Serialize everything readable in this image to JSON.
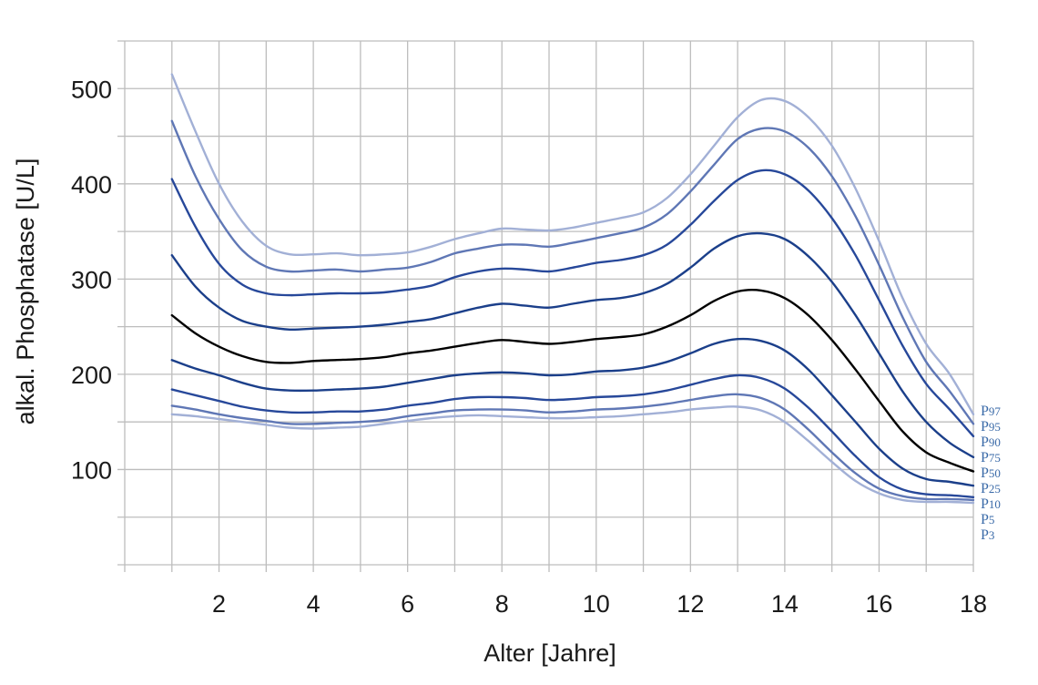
{
  "chart_data": {
    "type": "line",
    "title": "",
    "xlabel": "Alter [Jahre]",
    "ylabel": "alkal. Phosphatase [U/L]",
    "xlim": [
      0,
      18
    ],
    "ylim": [
      0,
      550
    ],
    "x_ticks": [
      2,
      4,
      6,
      8,
      10,
      12,
      14,
      16,
      18
    ],
    "y_ticks": [
      100,
      200,
      300,
      400,
      500
    ],
    "x_grid_step": 1,
    "y_grid_step": 50,
    "grid": true,
    "legend": "labels at right end of lines",
    "x": [
      1,
      1.5,
      2,
      2.5,
      3,
      3.5,
      4,
      4.5,
      5,
      5.5,
      6,
      6.5,
      7,
      7.5,
      8,
      8.5,
      9,
      9.5,
      10,
      10.5,
      11,
      11.5,
      12,
      12.5,
      13,
      13.5,
      14,
      14.5,
      15,
      15.5,
      16,
      16.5,
      17,
      17.5,
      18
    ],
    "series": [
      {
        "name": "P97",
        "color": "#a2b0d6",
        "values": [
          515,
          455,
          400,
          360,
          335,
          326,
          326,
          327,
          325,
          326,
          328,
          334,
          342,
          348,
          353,
          352,
          351,
          354,
          359,
          364,
          370,
          385,
          410,
          440,
          470,
          488,
          487,
          470,
          440,
          395,
          340,
          280,
          232,
          200,
          158
        ]
      },
      {
        "name": "P95",
        "color": "#5f77b5",
        "values": [
          466,
          408,
          363,
          330,
          313,
          308,
          309,
          310,
          308,
          310,
          312,
          318,
          327,
          332,
          336,
          336,
          334,
          338,
          343,
          348,
          354,
          368,
          392,
          420,
          447,
          458,
          455,
          438,
          408,
          366,
          315,
          260,
          213,
          182,
          148
        ]
      },
      {
        "name": "P90",
        "color": "#27489a",
        "values": [
          405,
          355,
          316,
          294,
          285,
          283,
          284,
          285,
          285,
          286,
          289,
          293,
          302,
          308,
          311,
          310,
          308,
          312,
          317,
          320,
          325,
          336,
          357,
          382,
          404,
          414,
          410,
          393,
          364,
          325,
          278,
          230,
          190,
          163,
          135
        ]
      },
      {
        "name": "P75",
        "color": "#1b3f8a",
        "values": [
          325,
          292,
          270,
          256,
          250,
          247,
          248,
          249,
          250,
          252,
          255,
          258,
          264,
          270,
          274,
          272,
          270,
          274,
          278,
          280,
          285,
          295,
          312,
          332,
          345,
          348,
          342,
          324,
          297,
          262,
          222,
          182,
          150,
          128,
          113
        ]
      },
      {
        "name": "P50",
        "color": "#000000",
        "values": [
          262,
          243,
          229,
          219,
          213,
          212,
          214,
          215,
          216,
          218,
          222,
          225,
          229,
          233,
          236,
          234,
          232,
          234,
          237,
          239,
          242,
          250,
          262,
          277,
          287,
          288,
          280,
          262,
          236,
          205,
          172,
          140,
          118,
          107,
          98
        ]
      },
      {
        "name": "P25",
        "color": "#1b3f8a",
        "values": [
          215,
          206,
          199,
          191,
          185,
          183,
          183,
          184,
          185,
          187,
          191,
          195,
          199,
          201,
          202,
          201,
          199,
          200,
          203,
          204,
          207,
          213,
          222,
          232,
          237,
          235,
          225,
          205,
          178,
          150,
          122,
          101,
          90,
          87,
          83
        ]
      },
      {
        "name": "P10",
        "color": "#27489a",
        "values": [
          184,
          178,
          172,
          166,
          162,
          160,
          160,
          161,
          161,
          163,
          167,
          170,
          174,
          176,
          176,
          175,
          173,
          174,
          176,
          177,
          179,
          183,
          189,
          195,
          199,
          196,
          185,
          165,
          140,
          114,
          92,
          79,
          74,
          73,
          71
        ]
      },
      {
        "name": "P5",
        "color": "#5f77b5",
        "values": [
          167,
          163,
          158,
          154,
          151,
          148,
          148,
          149,
          150,
          152,
          156,
          159,
          162,
          163,
          163,
          162,
          160,
          161,
          163,
          164,
          166,
          169,
          173,
          177,
          179,
          175,
          163,
          142,
          118,
          96,
          80,
          72,
          69,
          69,
          68
        ]
      },
      {
        "name": "P3",
        "color": "#a2b0d6",
        "values": [
          158,
          156,
          153,
          150,
          147,
          144,
          143,
          144,
          145,
          148,
          151,
          154,
          156,
          157,
          156,
          155,
          154,
          154,
          155,
          156,
          158,
          160,
          163,
          165,
          166,
          162,
          150,
          130,
          108,
          88,
          75,
          68,
          66,
          66,
          65
        ]
      }
    ],
    "label_color": "#3a6aa8"
  }
}
